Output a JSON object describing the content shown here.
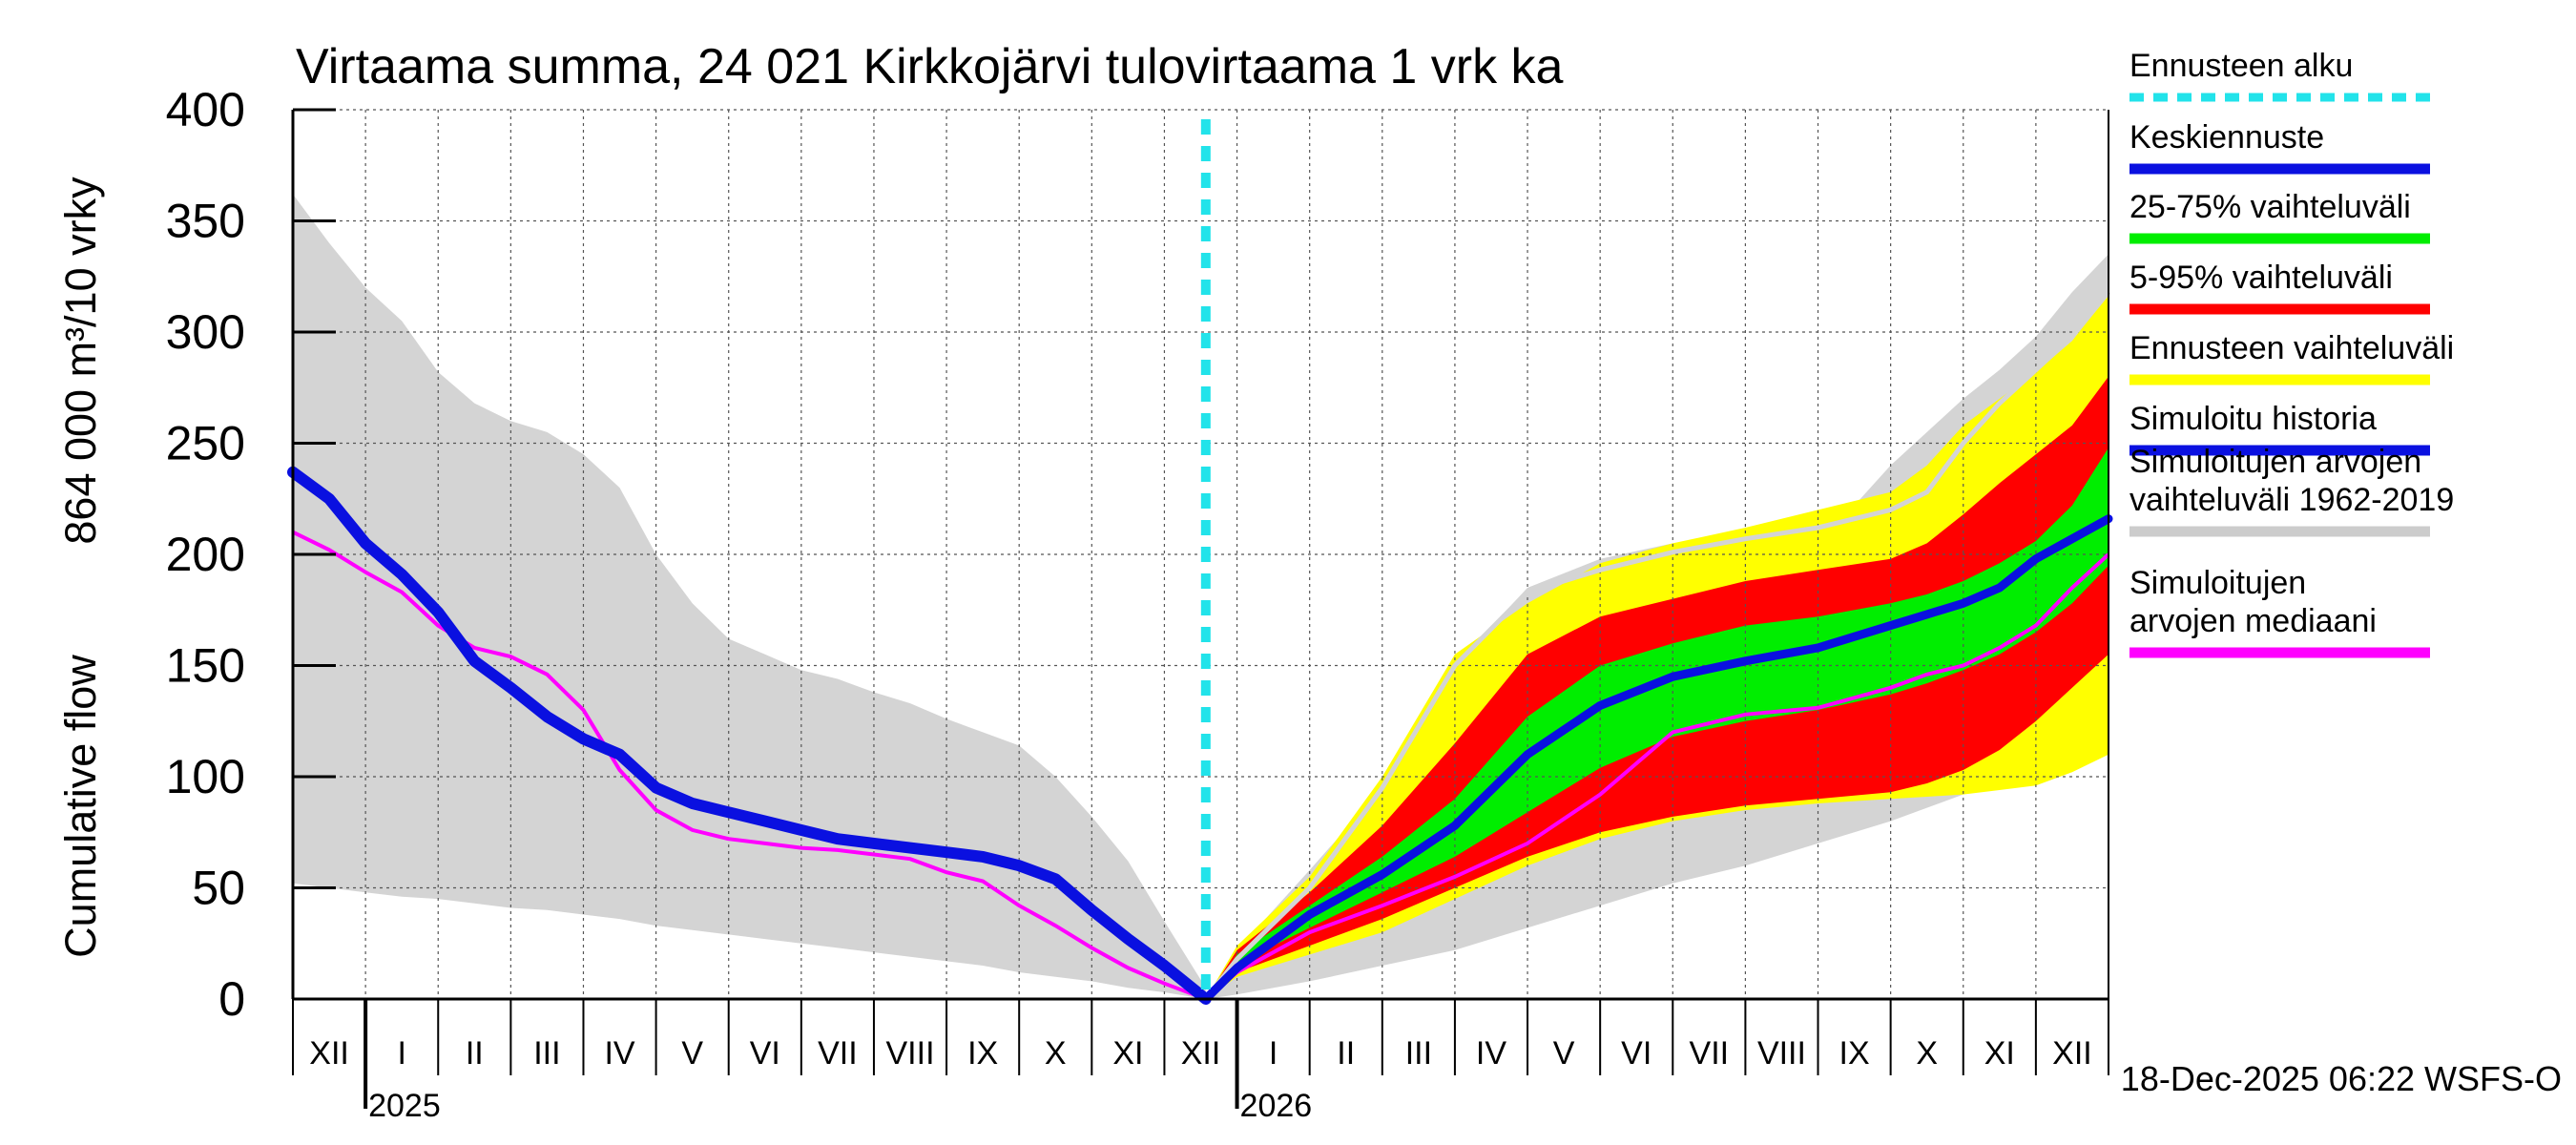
{
  "chart_data": {
    "type": "area",
    "title": "Virtaama summa, 24 021 Kirkkojärvi tulovirtaama 1 vrk ka",
    "ylabel_line1": "Cumulative flow",
    "ylabel_line2": "864 000 m³/10 vrky",
    "ylim": [
      0,
      400
    ],
    "yticks": [
      0,
      50,
      100,
      150,
      200,
      250,
      300,
      350,
      400
    ],
    "xlim": [
      0,
      25
    ],
    "month_labels": [
      {
        "label": "XII",
        "start": 0,
        "end": 1
      },
      {
        "label": "I",
        "start": 1,
        "end": 2
      },
      {
        "label": "II",
        "start": 2,
        "end": 3
      },
      {
        "label": "III",
        "start": 3,
        "end": 4
      },
      {
        "label": "IV",
        "start": 4,
        "end": 5
      },
      {
        "label": "V",
        "start": 5,
        "end": 6
      },
      {
        "label": "VI",
        "start": 6,
        "end": 7
      },
      {
        "label": "VII",
        "start": 7,
        "end": 8
      },
      {
        "label": "VIII",
        "start": 8,
        "end": 9
      },
      {
        "label": "IX",
        "start": 9,
        "end": 10
      },
      {
        "label": "X",
        "start": 10,
        "end": 11
      },
      {
        "label": "XI",
        "start": 11,
        "end": 12
      },
      {
        "label": "XII",
        "start": 12,
        "end": 13
      },
      {
        "label": "I",
        "start": 13,
        "end": 14
      },
      {
        "label": "II",
        "start": 14,
        "end": 15
      },
      {
        "label": "III",
        "start": 15,
        "end": 16
      },
      {
        "label": "IV",
        "start": 16,
        "end": 17
      },
      {
        "label": "V",
        "start": 17,
        "end": 18
      },
      {
        "label": "VI",
        "start": 18,
        "end": 19
      },
      {
        "label": "VII",
        "start": 19,
        "end": 20
      },
      {
        "label": "VIII",
        "start": 20,
        "end": 21
      },
      {
        "label": "IX",
        "start": 21,
        "end": 22
      },
      {
        "label": "X",
        "start": 22,
        "end": 23
      },
      {
        "label": "XI",
        "start": 23,
        "end": 24
      },
      {
        "label": "XII",
        "start": 24,
        "end": 25
      }
    ],
    "year_labels": [
      {
        "label": "2025",
        "at": 1
      },
      {
        "label": "2026",
        "at": 13
      }
    ],
    "forecast_start_x": 12.57,
    "legend": [
      {
        "label": "Ennusteen alku",
        "color": "#22e3ea",
        "style": "dashed"
      },
      {
        "label": "Keskiennuste",
        "color": "#0a10e0",
        "style": "solid"
      },
      {
        "label": "25-75% vaihteluväli",
        "color": "#00ee00",
        "style": "solid"
      },
      {
        "label": "5-95% vaihteluväli",
        "color": "#ff0000",
        "style": "solid"
      },
      {
        "label": "Ennusteen vaihteluväli",
        "color": "#ffff00",
        "style": "solid"
      },
      {
        "label": "Simuloitu historia",
        "color": "#0a10e0",
        "style": "solid"
      },
      {
        "label": "Simuloitujen arvojen vaihteluväli 1962-2019",
        "color": "#cccccc",
        "style": "solid"
      },
      {
        "label": "Simuloitujen arvojen mediaani",
        "color": "#ff00ff",
        "style": "solid"
      }
    ],
    "history_band": {
      "x": [
        0,
        0.5,
        1,
        1.5,
        2,
        2.5,
        3,
        3.5,
        4,
        4.5,
        5,
        5.5,
        6,
        6.5,
        7,
        7.5,
        8,
        8.5,
        9,
        9.5,
        10,
        10.5,
        11,
        11.5,
        12,
        12.57
      ],
      "upper": [
        362,
        340,
        320,
        305,
        282,
        268,
        260,
        255,
        245,
        230,
        200,
        178,
        162,
        155,
        148,
        144,
        138,
        133,
        126,
        120,
        114,
        100,
        82,
        62,
        35,
        5
      ],
      "lower": [
        52,
        50,
        48,
        46,
        45,
        43,
        41,
        40,
        38,
        36,
        33,
        31,
        29,
        27,
        25,
        23,
        21,
        19,
        17,
        15,
        12,
        10,
        8,
        5,
        3,
        0
      ]
    },
    "future_band": {
      "x": [
        12.57,
        13,
        14,
        15,
        16,
        17,
        18,
        19,
        20,
        21,
        21.5,
        22,
        22.5,
        23,
        23.5,
        24,
        24.5,
        25
      ],
      "upper": [
        0,
        22,
        58,
        95,
        150,
        185,
        198,
        205,
        210,
        218,
        222,
        240,
        255,
        270,
        283,
        298,
        318,
        335
      ],
      "lower": [
        0,
        2,
        8,
        15,
        22,
        32,
        42,
        52,
        60,
        70,
        75,
        80,
        86,
        92,
        97,
        103,
        108,
        112
      ]
    },
    "history_median": {
      "x": [
        0,
        0.5,
        1,
        1.5,
        2,
        2.5,
        3,
        3.5,
        4,
        4.5,
        5,
        5.5,
        6,
        6.5,
        7,
        7.5,
        8,
        8.5,
        9,
        9.5,
        10,
        10.5,
        11,
        11.5,
        12,
        12.57
      ],
      "values": [
        210,
        202,
        192,
        183,
        168,
        158,
        154,
        146,
        130,
        103,
        85,
        76,
        72,
        70,
        68,
        67,
        65,
        63,
        57,
        53,
        42,
        33,
        23,
        14,
        7,
        0
      ]
    },
    "future_median": {
      "x": [
        12.57,
        13,
        14,
        15,
        16,
        17,
        18,
        19,
        20,
        21,
        22,
        22.5,
        23,
        23.5,
        24,
        24.5,
        25
      ],
      "values": [
        0,
        12,
        30,
        42,
        55,
        70,
        92,
        120,
        128,
        131,
        140,
        146,
        150,
        158,
        168,
        185,
        200
      ]
    },
    "gray_median": {
      "x": [
        12.57,
        13,
        14,
        15,
        16,
        17,
        18,
        19,
        20,
        21,
        22,
        22.5,
        23,
        23.5,
        24,
        24.5,
        25
      ],
      "values": [
        0,
        18,
        50,
        95,
        150,
        183,
        193,
        201,
        207,
        212,
        220,
        228,
        250,
        268,
        283,
        298,
        318
      ]
    },
    "forecast_quantiles": {
      "x": [
        12.57,
        13,
        14,
        15,
        16,
        17,
        18,
        19,
        20,
        21,
        22,
        22.5,
        23,
        23.5,
        24,
        24.5,
        25
      ],
      "q05": [
        0,
        12,
        24,
        36,
        50,
        64,
        75,
        82,
        87,
        90,
        93,
        97,
        103,
        112,
        125,
        140,
        155
      ],
      "q25": [
        0,
        16,
        32,
        48,
        64,
        84,
        104,
        118,
        125,
        130,
        137,
        142,
        148,
        155,
        165,
        178,
        195
      ],
      "q75": [
        0,
        20,
        42,
        64,
        90,
        127,
        150,
        160,
        168,
        172,
        178,
        182,
        188,
        196,
        206,
        222,
        248
      ],
      "q95": [
        0,
        22,
        48,
        78,
        115,
        155,
        172,
        180,
        188,
        193,
        198,
        205,
        218,
        232,
        245,
        258,
        280
      ],
      "fmax": [
        0,
        24,
        55,
        100,
        155,
        178,
        196,
        205,
        212,
        220,
        228,
        240,
        258,
        270,
        282,
        296,
        317
      ],
      "fmin": [
        0,
        10,
        20,
        30,
        45,
        60,
        72,
        80,
        85,
        88,
        90,
        91,
        92,
        94,
        96,
        102,
        110
      ]
    },
    "history_sim": {
      "x": [
        0,
        0.5,
        1,
        1.5,
        2,
        2.5,
        3,
        3.5,
        4,
        4.5,
        5,
        5.5,
        6,
        6.5,
        7,
        7.5,
        8,
        8.5,
        9,
        9.5,
        10,
        10.5,
        11,
        11.5,
        12,
        12.57
      ],
      "values": [
        237,
        225,
        205,
        191,
        174,
        152,
        140,
        127,
        117,
        110,
        95,
        88,
        84,
        80,
        76,
        72,
        70,
        68,
        66,
        64,
        60,
        54,
        40,
        27,
        15,
        0
      ]
    },
    "forecast_mean": {
      "x": [
        12.57,
        13,
        14,
        15,
        16,
        17,
        18,
        19,
        20,
        21,
        22,
        22.5,
        23,
        23.5,
        24,
        24.5,
        25
      ],
      "values": [
        0,
        14,
        38,
        56,
        78,
        110,
        132,
        145,
        152,
        158,
        168,
        173,
        178,
        185,
        198,
        207,
        216
      ]
    },
    "timestamp": "18-Dec-2025 06:22 WSFS-O"
  }
}
